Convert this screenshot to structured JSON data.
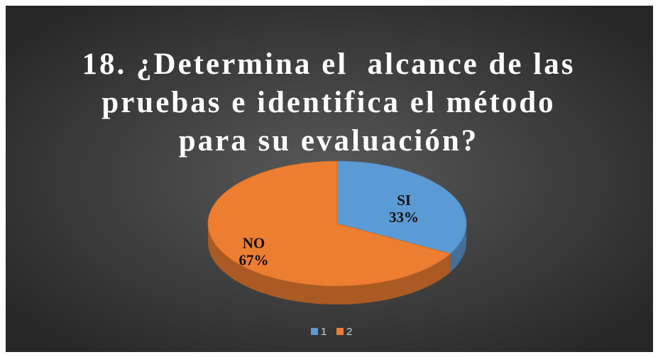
{
  "chart_data": {
    "type": "pie",
    "title": "18. ¿Determina el  alcance de las pruebas e identifica el método para su evaluación?",
    "categories": [
      "1",
      "2"
    ],
    "labels": [
      "SI",
      "NO"
    ],
    "values": [
      33,
      67
    ],
    "value_labels": [
      "33%",
      "67%"
    ],
    "colors": [
      "#5b9bd5",
      "#ed7d31"
    ],
    "legend": "bottom"
  }
}
